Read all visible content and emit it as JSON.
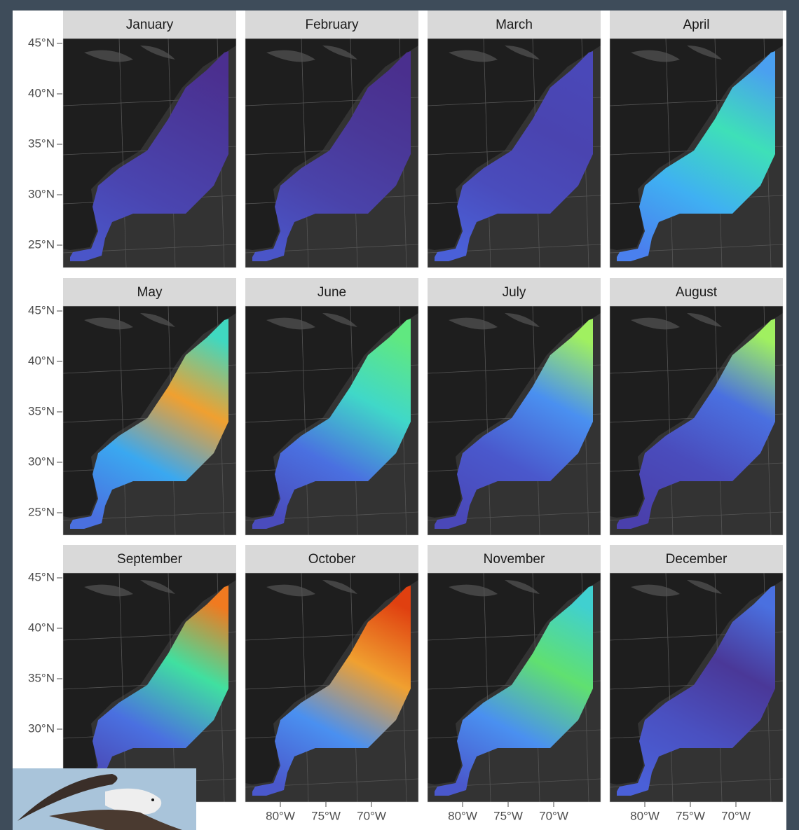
{
  "panels": [
    {
      "title": "January"
    },
    {
      "title": "February"
    },
    {
      "title": "March"
    },
    {
      "title": "April"
    },
    {
      "title": "May"
    },
    {
      "title": "June"
    },
    {
      "title": "July"
    },
    {
      "title": "August"
    },
    {
      "title": "September"
    },
    {
      "title": "October"
    },
    {
      "title": "November"
    },
    {
      "title": "December"
    }
  ],
  "y_axis_labels": [
    [
      "45°N",
      "40°N",
      "35°N",
      "30°N",
      "25°N"
    ],
    [
      "45°N",
      "40°N",
      "35°N",
      "30°N",
      "25°N"
    ],
    [
      "45°N",
      "40°N",
      "35°N",
      "30°N"
    ]
  ],
  "x_axis_labels": [
    [
      "80°W",
      "75°W",
      "70°W"
    ],
    [
      "80°W",
      "75°W",
      "70°W"
    ],
    [
      "80°W",
      "75°W",
      "70°W"
    ]
  ]
}
